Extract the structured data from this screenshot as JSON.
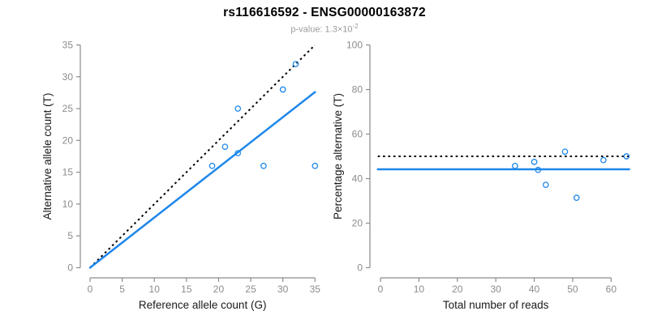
{
  "header": {
    "title": "rs116616592 - ENSG00000163872",
    "subtitle_prefix": "p-value: 1.3×10",
    "subtitle_exponent": "-2"
  },
  "colors": {
    "accent_blue": "#1e87ea",
    "dotted_black": "#000000",
    "axis_gray": "#8c8c8c",
    "axis_title_color": "#1a1a1a"
  },
  "chart_data": [
    {
      "type": "scatter",
      "name": "allele-counts",
      "xlabel": "Reference allele count (G)",
      "ylabel": "Alternative allele count (T)",
      "xlim": [
        0,
        35
      ],
      "ylim": [
        0,
        35
      ],
      "xticks": [
        0,
        5,
        10,
        15,
        20,
        25,
        30,
        35
      ],
      "yticks": [
        0,
        5,
        10,
        15,
        20,
        25,
        30,
        35
      ],
      "grid": false,
      "legend": "none",
      "points": [
        [
          19,
          16
        ],
        [
          21,
          19
        ],
        [
          23,
          18
        ],
        [
          23,
          25
        ],
        [
          27,
          16
        ],
        [
          30,
          28
        ],
        [
          32,
          32
        ],
        [
          35,
          16
        ]
      ],
      "lines": [
        {
          "name": "identity",
          "style": "dotted",
          "color_key": "dotted_black",
          "from": [
            0,
            0
          ],
          "to": [
            35,
            35
          ]
        },
        {
          "name": "fit",
          "style": "solid",
          "color_key": "accent_blue",
          "from": [
            0,
            0
          ],
          "to": [
            35,
            27.6
          ]
        }
      ]
    },
    {
      "type": "scatter",
      "name": "percentage-alternative",
      "xlabel": "Total number of reads",
      "ylabel": "Percentage alternative (T)",
      "xlim": [
        0,
        64.7
      ],
      "ylim": [
        0,
        100
      ],
      "xticks": [
        0,
        10,
        20,
        30,
        40,
        50,
        60
      ],
      "yticks": [
        0,
        20,
        40,
        60,
        80,
        100
      ],
      "grid": false,
      "legend": "none",
      "points": [
        [
          35,
          45.7
        ],
        [
          40,
          47.5
        ],
        [
          41,
          43.9
        ],
        [
          43,
          37.2
        ],
        [
          48,
          52.1
        ],
        [
          51,
          31.4
        ],
        [
          58,
          48.3
        ],
        [
          64,
          50.0
        ]
      ],
      "lines": [
        {
          "name": "expected-50pct",
          "style": "dotted",
          "color_key": "dotted_black",
          "from": [
            -0.7,
            50
          ],
          "to": [
            64.7,
            50
          ]
        },
        {
          "name": "mean-pct",
          "style": "solid",
          "color_key": "accent_blue",
          "from": [
            -0.7,
            44.2
          ],
          "to": [
            64.7,
            44.2
          ]
        }
      ]
    }
  ]
}
